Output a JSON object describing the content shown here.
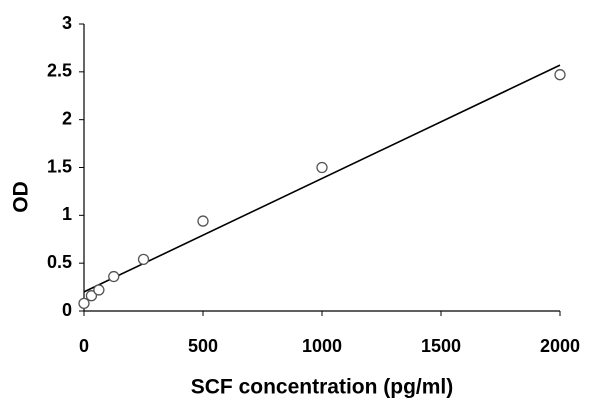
{
  "chart_data": {
    "type": "scatter",
    "xlabel": "SCF concentration (pg/ml)",
    "ylabel": "OD",
    "x": [
      0,
      31.25,
      62.5,
      125,
      250,
      500,
      1000,
      2000
    ],
    "values": [
      0.08,
      0.16,
      0.22,
      0.36,
      0.54,
      0.94,
      1.5,
      2.47
    ],
    "color": "#ffffff",
    "edge_color": "#555555",
    "trendline": {
      "x": [
        0,
        2000
      ],
      "values": [
        0.2,
        2.57
      ],
      "color": "#000000"
    },
    "xlim": [
      0,
      2000
    ],
    "xticks": [
      0,
      500,
      1000,
      1500,
      2000
    ],
    "ylim": [
      0,
      3
    ],
    "yticks": [
      0,
      0.5,
      1,
      1.5,
      2,
      2.5,
      3
    ],
    "grid": false
  }
}
